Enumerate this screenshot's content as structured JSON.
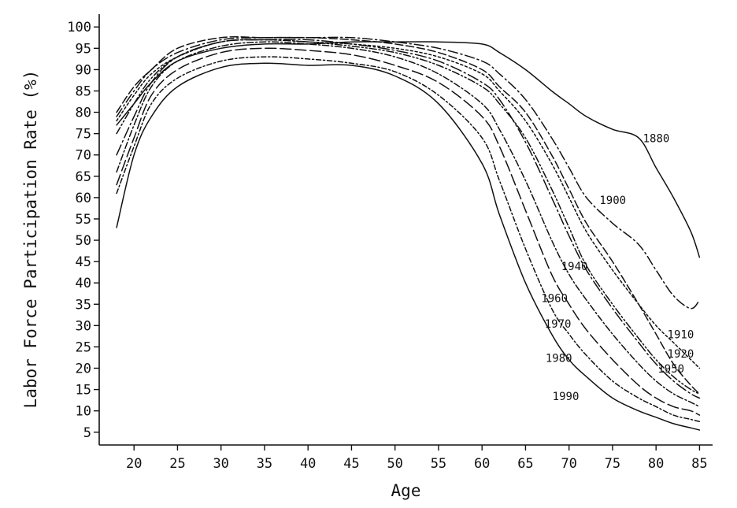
{
  "chart_data": {
    "type": "line",
    "title": "",
    "xlabel": "Age",
    "ylabel": "Labor Force Participation Rate (%)",
    "xlim": [
      16,
      86.5
    ],
    "ylim": [
      2,
      103
    ],
    "x_ticks": [
      20,
      25,
      30,
      35,
      40,
      45,
      50,
      55,
      60,
      65,
      70,
      75,
      80,
      85
    ],
    "y_ticks": [
      5,
      10,
      15,
      20,
      25,
      30,
      35,
      40,
      45,
      50,
      55,
      60,
      65,
      70,
      75,
      80,
      85,
      90,
      95,
      100
    ],
    "grid": false,
    "legend": "none (series labelled inline)",
    "x": [
      18,
      20,
      22,
      25,
      30,
      35,
      40,
      45,
      50,
      55,
      60,
      62,
      65,
      68,
      70,
      72,
      75,
      78,
      80,
      82,
      84,
      85
    ],
    "series": [
      {
        "name": "1880",
        "dash": "",
        "label_at": [
          78.5,
          73
        ],
        "values": [
          77,
          82,
          87,
          92,
          95,
          96,
          96,
          96.5,
          96.5,
          96.5,
          96,
          94,
          90,
          85,
          82,
          79,
          76,
          74,
          67,
          60,
          52,
          46
        ]
      },
      {
        "name": "1900",
        "dash": "12 4 2 4",
        "label_at": [
          73.5,
          58.5
        ],
        "values": [
          79,
          85,
          90,
          94,
          97,
          97.5,
          97.5,
          97.5,
          96.5,
          95,
          92,
          89,
          83,
          74,
          67,
          60,
          54,
          49,
          43,
          37,
          34,
          36
        ]
      },
      {
        "name": "1910",
        "dash": "10 4",
        "label_at": [
          81.3,
          27
        ],
        "values": [
          80,
          86,
          90,
          95,
          97.5,
          97.5,
          97.5,
          97,
          96,
          94,
          90,
          86,
          80,
          70,
          62,
          54,
          45,
          35,
          28,
          21,
          16,
          14
        ]
      },
      {
        "name": "1920",
        "dash": "3 3",
        "label_at": [
          81.3,
          22.5
        ],
        "values": [
          78,
          84,
          89,
          93,
          96.5,
          97,
          96.5,
          96,
          95,
          93,
          89,
          85,
          78,
          68,
          60,
          52,
          43,
          35,
          30,
          26,
          22,
          20
        ]
      },
      {
        "name": "1940",
        "dash": "9 3 2 3 2 3",
        "label_at": [
          69.1,
          43
        ],
        "values": [
          75,
          82,
          88,
          93,
          96.5,
          97,
          96.5,
          95.5,
          94,
          91,
          86,
          82,
          74,
          62,
          53,
          44,
          35,
          27,
          22,
          18,
          15,
          14
        ]
      },
      {
        "name": "1950",
        "dash": "14 4 2 4",
        "label_at": [
          80.2,
          19
        ],
        "values": [
          70,
          79,
          87,
          93,
          96.5,
          97,
          97,
          96,
          94.5,
          92,
          87,
          83,
          73,
          60,
          51,
          43,
          34,
          26,
          21,
          17,
          14,
          13
        ]
      },
      {
        "name": "1960",
        "dash": "8 3 2 3",
        "label_at": [
          66.8,
          35.5
        ],
        "values": [
          66,
          77,
          86,
          92,
          95.5,
          96.5,
          96,
          95,
          93,
          89,
          82,
          76,
          64,
          50,
          42,
          36,
          28,
          21,
          17,
          14,
          12,
          11
        ]
      },
      {
        "name": "1970",
        "dash": "14 5",
        "label_at": [
          67.2,
          29.5
        ],
        "values": [
          63,
          74,
          84,
          90,
          94,
          95,
          94.5,
          93.5,
          91,
          87,
          79,
          72,
          57,
          42,
          35,
          29,
          22,
          16,
          13,
          11,
          10,
          9
        ]
      },
      {
        "name": "1980",
        "dash": "6 3 2 3",
        "label_at": [
          67.3,
          21.5
        ],
        "values": [
          61,
          72,
          82,
          88,
          92,
          93,
          92.5,
          91.5,
          89.5,
          84,
          74,
          64,
          48,
          34,
          28,
          23,
          17,
          13,
          11,
          9,
          8,
          7.5
        ]
      },
      {
        "name": "1990",
        "dash": "",
        "label_at": [
          68.1,
          12.5
        ],
        "values": [
          53,
          70,
          79,
          86,
          90.5,
          91.5,
          91,
          91,
          88.5,
          82,
          68,
          56,
          40,
          28,
          22,
          18,
          13,
          10,
          8.5,
          7,
          6,
          5.5
        ]
      }
    ]
  }
}
